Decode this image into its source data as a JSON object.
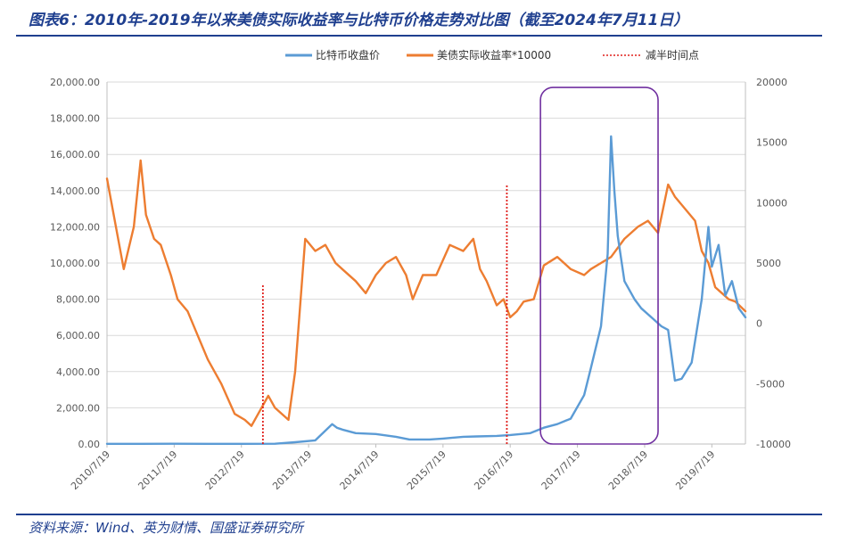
{
  "header": {
    "title": "图表6：2010年-2019年以来美债实际收益率与比特币价格走势对比图（截至2024年7月11日）"
  },
  "footer": {
    "source": "资料来源：Wind、英为财情、国盛证券研究所"
  },
  "colors": {
    "btc": "#5b9bd5",
    "yield": "#ed7d31",
    "halving": "#e0201c",
    "box": "#7030a0",
    "rule": "#1f3f8f"
  },
  "chart_data": {
    "type": "line",
    "title": "2010年-2019年以来美债实际收益率与比特币价格走势对比图",
    "x_start": 2010.5,
    "x_end": 2020.0,
    "x_tick_values": [
      2010.5,
      2011.5,
      2012.5,
      2013.5,
      2014.5,
      2015.5,
      2016.5,
      2017.5,
      2018.5,
      2019.5
    ],
    "x_tick_labels": [
      "2010/7/19",
      "2011/7/19",
      "2012/7/19",
      "2013/7/19",
      "2014/7/19",
      "2015/7/19",
      "2016/7/19",
      "2017/7/19",
      "2018/7/19",
      "2019/7/19"
    ],
    "y_left": {
      "min": 0,
      "max": 20000,
      "step": 2000,
      "tick_labels": [
        "0.00",
        "2,000.00",
        "4,000.00",
        "6,000.00",
        "8,000.00",
        "10,000.00",
        "12,000.00",
        "14,000.00",
        "16,000.00",
        "18,000.00",
        "20,000.00"
      ]
    },
    "y_right": {
      "min": -10000,
      "max": 20000,
      "step": 5000,
      "tick_labels": [
        "-10000",
        "-5000",
        "0",
        "5000",
        "10000",
        "15000",
        "20000"
      ]
    },
    "legend": [
      "比特币收盘价",
      "美债实际收益率*10000",
      "减半时间点"
    ],
    "series": [
      {
        "name": "比特币收盘价",
        "axis": "left",
        "x": [
          2010.5,
          2011.0,
          2011.5,
          2012.0,
          2012.5,
          2013.0,
          2013.3,
          2013.6,
          2013.85,
          2013.92,
          2014.0,
          2014.2,
          2014.5,
          2014.8,
          2015.0,
          2015.3,
          2015.5,
          2015.8,
          2016.0,
          2016.3,
          2016.5,
          2016.8,
          2017.0,
          2017.2,
          2017.4,
          2017.6,
          2017.7,
          2017.85,
          2017.95,
          2018.0,
          2018.05,
          2018.1,
          2018.2,
          2018.35,
          2018.45,
          2018.6,
          2018.75,
          2018.85,
          2018.95,
          2019.05,
          2019.2,
          2019.35,
          2019.45,
          2019.5,
          2019.6,
          2019.7,
          2019.8,
          2019.9,
          2020.0
        ],
        "values": [
          10,
          10,
          15,
          12,
          10,
          15,
          100,
          200,
          1100,
          900,
          800,
          600,
          550,
          400,
          250,
          250,
          300,
          400,
          420,
          450,
          500,
          600,
          900,
          1100,
          1400,
          2700,
          4200,
          6500,
          10500,
          17000,
          14000,
          11500,
          9000,
          8000,
          7500,
          7000,
          6500,
          6300,
          3500,
          3600,
          4500,
          8000,
          12000,
          9800,
          11000,
          8200,
          9000,
          7500,
          7000
        ]
      },
      {
        "name": "美债实际收益率*10000",
        "axis": "right",
        "x": [
          2010.5,
          2010.6,
          2010.75,
          2010.9,
          2011.0,
          2011.08,
          2011.2,
          2011.3,
          2011.45,
          2011.55,
          2011.7,
          2011.85,
          2012.0,
          2012.2,
          2012.4,
          2012.55,
          2012.65,
          2012.8,
          2012.9,
          2013.0,
          2013.2,
          2013.3,
          2013.45,
          2013.6,
          2013.75,
          2013.9,
          2014.0,
          2014.2,
          2014.35,
          2014.5,
          2014.65,
          2014.8,
          2014.95,
          2015.05,
          2015.2,
          2015.4,
          2015.6,
          2015.8,
          2015.95,
          2016.05,
          2016.15,
          2016.3,
          2016.4,
          2016.5,
          2016.6,
          2016.7,
          2016.85,
          2017.0,
          2017.2,
          2017.4,
          2017.6,
          2017.7,
          2017.85,
          2018.0,
          2018.2,
          2018.4,
          2018.55,
          2018.7,
          2018.85,
          2018.95,
          2019.1,
          2019.25,
          2019.35,
          2019.45,
          2019.55,
          2019.65,
          2019.75,
          2019.85,
          2020.0
        ],
        "values": [
          12000,
          9000,
          4500,
          8000,
          13500,
          9000,
          7000,
          6500,
          4000,
          2000,
          1000,
          -1000,
          -3000,
          -5000,
          -7500,
          -8000,
          -8500,
          -7000,
          -6000,
          -7000,
          -8000,
          -4000,
          7000,
          6000,
          6500,
          5000,
          4500,
          3500,
          2500,
          4000,
          5000,
          5500,
          4000,
          2000,
          4000,
          4000,
          6500,
          6000,
          7000,
          4500,
          3500,
          1500,
          2000,
          500,
          1000,
          1800,
          2000,
          4800,
          5500,
          4500,
          4000,
          4500,
          5000,
          5500,
          7000,
          8000,
          8500,
          7500,
          11500,
          10500,
          9500,
          8500,
          6000,
          5000,
          3000,
          2500,
          2000,
          1800,
          1000
        ]
      }
    ],
    "halving": {
      "name": "减半时间点",
      "x": [
        2012.82,
        2016.45
      ],
      "top_values": [
        8800,
        14300
      ]
    },
    "highlight_box": {
      "x_range": [
        2016.95,
        2018.7
      ],
      "y_range": [
        0,
        19700
      ]
    }
  }
}
